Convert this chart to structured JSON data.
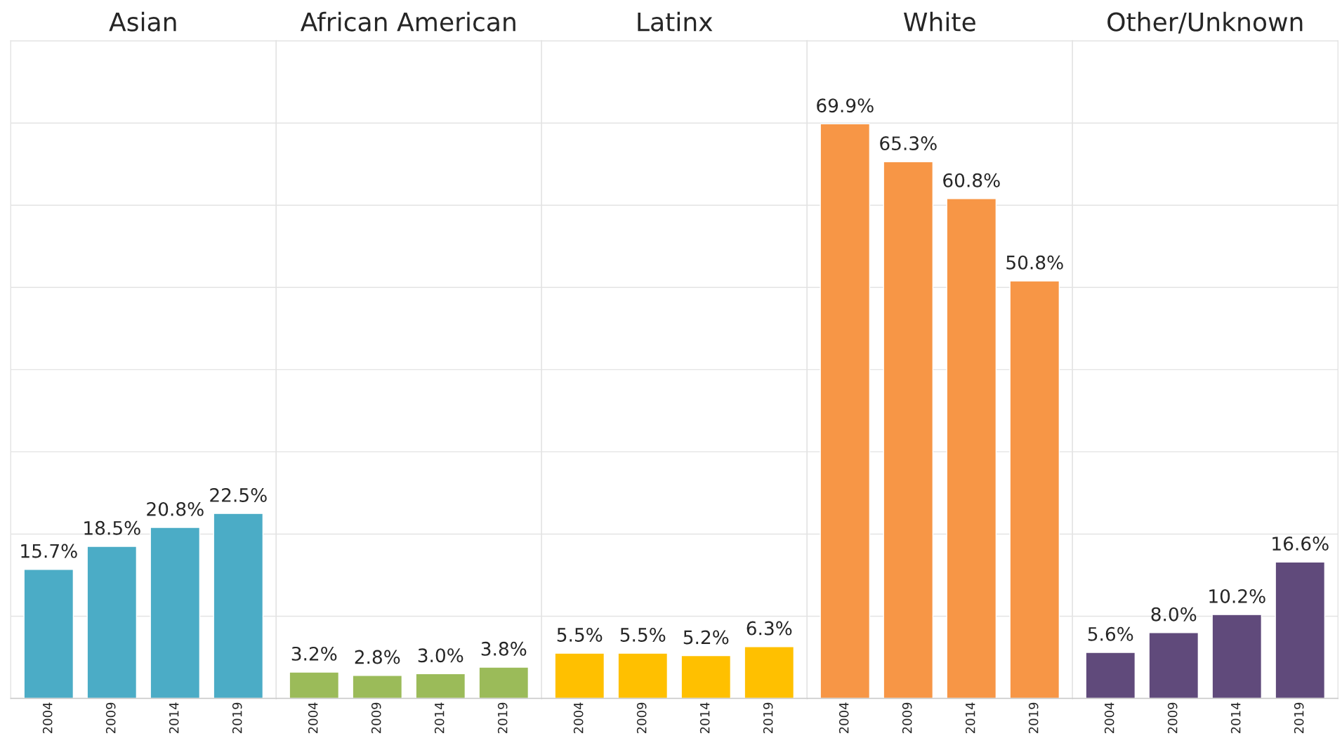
{
  "chart_data": [
    {
      "type": "bar",
      "title": "Asian",
      "categories": [
        "2004",
        "2009",
        "2014",
        "2019"
      ],
      "values": [
        15.7,
        18.5,
        20.8,
        22.5
      ],
      "value_labels": [
        "15.7%",
        "18.5%",
        "20.8%",
        "22.5%"
      ],
      "color": "#4bacc6",
      "ylim": [
        0,
        80
      ],
      "yticks": [
        {
          "value": 0,
          "label": null
        },
        {
          "value": 10,
          "label": null
        },
        {
          "value": 20,
          "label": null
        },
        {
          "value": 30,
          "label": null
        },
        {
          "value": 40,
          "label": null
        },
        {
          "value": 50,
          "label": null
        },
        {
          "value": 60,
          "label": null
        },
        {
          "value": 70,
          "label": null
        },
        {
          "value": 80,
          "label": null
        }
      ],
      "grid": "y",
      "tick_labels": "x"
    },
    {
      "type": "bar",
      "title": "African American",
      "categories": [
        "2004",
        "2009",
        "2014",
        "2019"
      ],
      "values": [
        3.2,
        2.8,
        3.0,
        3.8
      ],
      "value_labels": [
        "3.2%",
        "2.8%",
        "3.0%",
        "3.8%"
      ],
      "color": "#9bbb59",
      "ylim": [
        0,
        80
      ],
      "yticks": [
        {
          "value": 0,
          "label": null
        },
        {
          "value": 10,
          "label": null
        },
        {
          "value": 20,
          "label": null
        },
        {
          "value": 30,
          "label": null
        },
        {
          "value": 40,
          "label": null
        },
        {
          "value": 50,
          "label": null
        },
        {
          "value": 60,
          "label": null
        },
        {
          "value": 70,
          "label": null
        },
        {
          "value": 80,
          "label": null
        }
      ],
      "grid": "y",
      "tick_labels": "x"
    },
    {
      "type": "bar",
      "title": "Latinx",
      "categories": [
        "2004",
        "2009",
        "2014",
        "2019"
      ],
      "values": [
        5.5,
        5.5,
        5.2,
        6.3
      ],
      "value_labels": [
        "5.5%",
        "5.5%",
        "5.2%",
        "6.3%"
      ],
      "color": "#ffc000",
      "ylim": [
        0,
        80
      ],
      "yticks": [
        {
          "value": 0,
          "label": null
        },
        {
          "value": 10,
          "label": null
        },
        {
          "value": 20,
          "label": null
        },
        {
          "value": 30,
          "label": null
        },
        {
          "value": 40,
          "label": null
        },
        {
          "value": 50,
          "label": null
        },
        {
          "value": 60,
          "label": null
        },
        {
          "value": 70,
          "label": null
        },
        {
          "value": 80,
          "label": null
        }
      ],
      "grid": "y",
      "tick_labels": "x"
    },
    {
      "type": "bar",
      "title": "White",
      "categories": [
        "2004",
        "2009",
        "2014",
        "2019"
      ],
      "values": [
        69.9,
        65.3,
        60.8,
        50.8
      ],
      "value_labels": [
        "69.9%",
        "65.3%",
        "60.8%",
        "50.8%"
      ],
      "color": "#f79646",
      "ylim": [
        0,
        80
      ],
      "yticks": [
        {
          "value": 0,
          "label": null
        },
        {
          "value": 10,
          "label": null
        },
        {
          "value": 20,
          "label": null
        },
        {
          "value": 30,
          "label": null
        },
        {
          "value": 40,
          "label": null
        },
        {
          "value": 50,
          "label": null
        },
        {
          "value": 60,
          "label": null
        },
        {
          "value": 70,
          "label": null
        },
        {
          "value": 80,
          "label": null
        }
      ],
      "grid": "y",
      "tick_labels": "x"
    },
    {
      "type": "bar",
      "title": "Other/Unknown",
      "categories": [
        "2004",
        "2009",
        "2014",
        "2019"
      ],
      "values": [
        5.6,
        8.0,
        10.2,
        16.6
      ],
      "value_labels": [
        "5.6%",
        "8.0%",
        "10.2%",
        "16.6%"
      ],
      "color": "#604a7b",
      "ylim": [
        0,
        80
      ],
      "yticks": [
        {
          "value": 0,
          "label": null
        },
        {
          "value": 10,
          "label": null
        },
        {
          "value": 20,
          "label": null
        },
        {
          "value": 30,
          "label": null
        },
        {
          "value": 40,
          "label": null
        },
        {
          "value": 50,
          "label": null
        },
        {
          "value": 60,
          "label": null
        },
        {
          "value": 70,
          "label": null
        },
        {
          "value": 80,
          "label": null
        }
      ],
      "grid": "y",
      "tick_labels": "x"
    }
  ]
}
